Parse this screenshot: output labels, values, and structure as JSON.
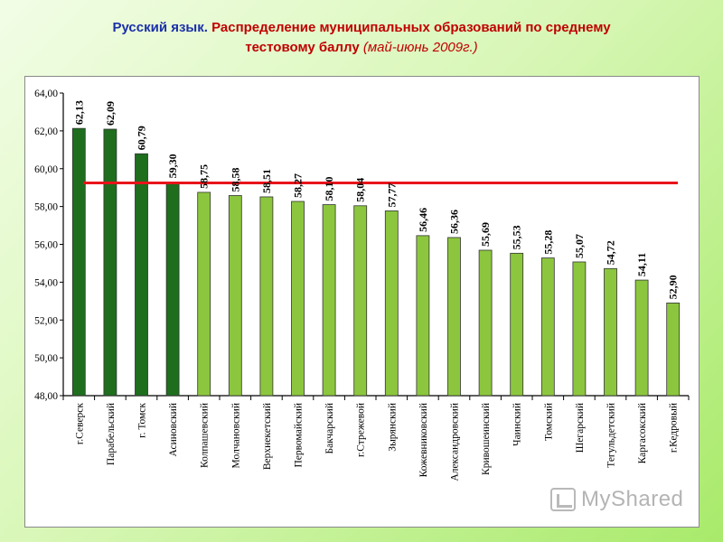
{
  "title": {
    "subject": "Русский язык.",
    "main_line1": "Распределение муниципальных образований по среднему",
    "main_line2": "тестовому баллу",
    "period": "(май-июнь 2009г.)"
  },
  "watermark": {
    "text": "MyShared",
    "icon": "myshared-logo-icon"
  },
  "chart_data": {
    "type": "bar",
    "categories": [
      "г.Северск",
      "Парабельский",
      "г. Томск",
      "Асиновский",
      "Колпашевский",
      "Молчановский",
      "Верхнекетский",
      "Первомайский",
      "Бакчарский",
      "г.Стрежевой",
      "Зырянский",
      "Кожевниковский",
      "Александровский",
      "Кривошеинский",
      "Чаинский",
      "Томский",
      "Шегарский",
      "Тегульдетский",
      "Каргасокский",
      "г.Кедровый"
    ],
    "values": [
      62.13,
      62.09,
      60.79,
      59.3,
      58.75,
      58.58,
      58.51,
      58.27,
      58.1,
      58.04,
      57.77,
      56.46,
      56.36,
      55.69,
      55.53,
      55.28,
      55.07,
      54.72,
      54.11,
      52.9
    ],
    "value_labels": [
      "62,13",
      "62,09",
      "60,79",
      "59,30",
      "58,75",
      "58,58",
      "58,51",
      "58,27",
      "58,10",
      "58,04",
      "57,77",
      "56,46",
      "56,36",
      "55,69",
      "55,53",
      "55,28",
      "55,07",
      "54,72",
      "54,11",
      "52,90"
    ],
    "ylim": [
      48,
      64
    ],
    "y_ticks": [
      48,
      50,
      52,
      54,
      56,
      58,
      60,
      62,
      64
    ],
    "y_tick_labels": [
      "48,00",
      "50,00",
      "52,00",
      "54,00",
      "56,00",
      "58,00",
      "60,00",
      "62,00",
      "64,00"
    ],
    "reference_line": 59.25,
    "colors": {
      "above_reference": "#1e6e1e",
      "below_reference": "#8cc63e",
      "reference_line": "#e8141a",
      "bar_border": "#333333"
    },
    "grid": false,
    "legend": "none"
  }
}
